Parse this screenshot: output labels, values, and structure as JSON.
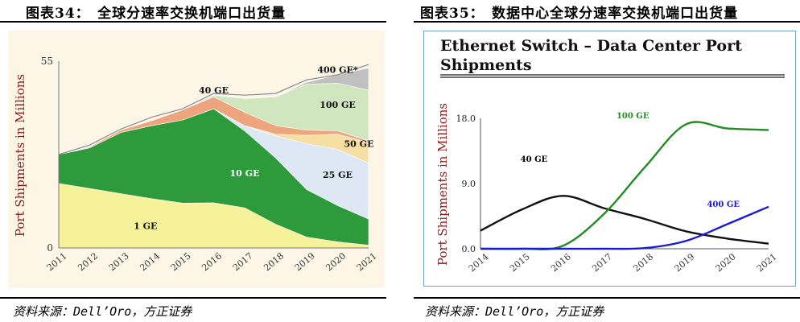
{
  "left_panel": {
    "title": "图表34：　全球分速率交换机端口出货量",
    "source": "资料来源：Dell’Oro，方正证券"
  },
  "right_panel": {
    "title": "图表35：　数据中心全球分速率交换机端口出货量",
    "source": "资料来源：Dell’Oro，方正证券"
  },
  "chart_data": [
    {
      "type": "area",
      "stacked": true,
      "title": "",
      "xlabel": "",
      "ylabel": "Port Shipments in Millions",
      "x": [
        "2011",
        "2012",
        "2013",
        "2014",
        "2015",
        "2016",
        "2017",
        "2018",
        "2019",
        "2020",
        "2021"
      ],
      "yticks": [
        "0",
        "55"
      ],
      "ylim": [
        0,
        55
      ],
      "grid": false,
      "background": "#fdf6e7",
      "series": [
        {
          "name": "1 GE",
          "color": "#f6f29a",
          "values": [
            19,
            17.5,
            16,
            14.5,
            13.2,
            13.3,
            11.8,
            7,
            3.2,
            1.8,
            0.8
          ]
        },
        {
          "name": "10 GE",
          "color": "#2d9b3b",
          "values": [
            8.5,
            12,
            18,
            21.5,
            24.5,
            27.7,
            22.7,
            19.5,
            14,
            10.7,
            7.7
          ]
        },
        {
          "name": "25 GE",
          "color": "#dde8f4",
          "values": [
            0,
            0,
            0,
            0,
            0,
            0,
            1.5,
            6.5,
            13.5,
            16.5,
            16.5
          ]
        },
        {
          "name": "50 GE",
          "color": "#f6dfa3",
          "values": [
            0,
            0,
            0,
            0,
            0,
            0,
            0,
            0.5,
            2.5,
            4.5,
            6
          ]
        },
        {
          "name": "40 GE",
          "color": "#eda57e",
          "values": [
            0,
            0.3,
            0.7,
            1.5,
            3,
            3.5,
            4,
            2.5,
            1.5,
            1,
            0.5
          ]
        },
        {
          "name": "100 GE",
          "color": "#cfe6bf",
          "values": [
            0,
            0,
            0,
            0,
            0,
            0.5,
            4,
            8.5,
            13.5,
            14,
            15
          ]
        },
        {
          "name": "400 GE*",
          "color": "#c0c0c0",
          "values": [
            0,
            0,
            0,
            0,
            0,
            0,
            0,
            0,
            0.6,
            2.5,
            6.5
          ]
        }
      ],
      "border_series": {
        "name": "",
        "color": "#8a8a8a",
        "values": [
          27.5,
          30.3,
          35,
          38.5,
          41,
          45.5,
          45,
          45.5,
          49.5,
          51,
          54
        ]
      }
    },
    {
      "type": "line",
      "title": "Ethernet Switch – Data Center Port Shipments",
      "xlabel": "",
      "ylabel": "Port Shipments in Millions",
      "x": [
        "2014",
        "2015",
        "2016",
        "2017",
        "2018",
        "2019",
        "2020",
        "2021"
      ],
      "yticks": [
        "0.0",
        "9.0",
        "18.0"
      ],
      "ylim": [
        0,
        18
      ],
      "grid": false,
      "series": [
        {
          "name": "40 GE",
          "color": "#111111",
          "values": [
            2.5,
            5.4,
            7.3,
            5.6,
            4.1,
            2.4,
            1.4,
            0.7
          ]
        },
        {
          "name": "100 GE",
          "color": "#228b22",
          "values": [
            0,
            0,
            0.4,
            4.8,
            11.3,
            17.2,
            16.6,
            16.4
          ]
        },
        {
          "name": "400 GE",
          "color": "#1b1bd6",
          "values": [
            0,
            0,
            0,
            0,
            0.1,
            1.1,
            3.4,
            5.8
          ]
        }
      ]
    }
  ]
}
